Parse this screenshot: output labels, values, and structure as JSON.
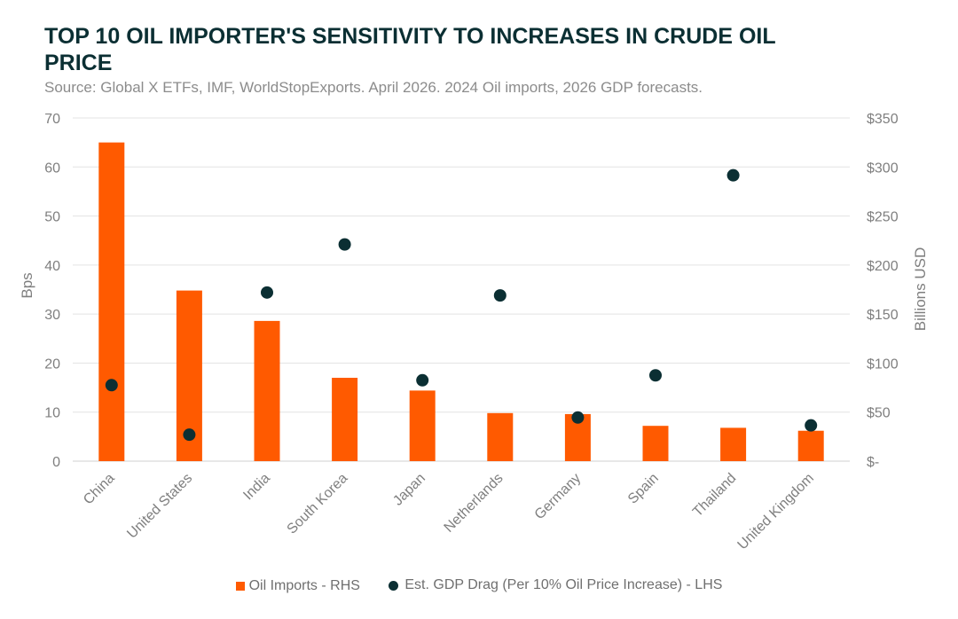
{
  "chart_data": {
    "type": "bar",
    "title": "TOP 10 OIL IMPORTER'S SENSITIVITY TO INCREASES IN CRUDE OIL PRICE",
    "subtitle": "Source: Global X ETFs, IMF, WorldStopExports. April 2026. 2024 Oil imports, 2026 GDP forecasts.",
    "categories": [
      "China",
      "United States",
      "India",
      "South Korea",
      "Japan",
      "Netherlands",
      "Germany",
      "Spain",
      "Thailand",
      "United Kingdom"
    ],
    "series": [
      {
        "name": "Oil Imports - RHS",
        "kind": "bar",
        "axis": "right",
        "color": "#ff5a00",
        "values": [
          325,
          174,
          143,
          85,
          72,
          49,
          48,
          36,
          34,
          31
        ]
      },
      {
        "name": "Est. GDP Drag (Per 10% Oil Price Increase) - LHS",
        "kind": "scatter",
        "axis": "left",
        "color": "#0b2f33",
        "values": [
          15.5,
          5.4,
          34.4,
          44.2,
          16.5,
          33.8,
          8.9,
          17.5,
          58.3,
          7.3
        ]
      }
    ],
    "ylabel": "Bps",
    "ylim": [
      0,
      70
    ],
    "yticks": [
      "0",
      "10",
      "20",
      "30",
      "40",
      "50",
      "60",
      "70"
    ],
    "y2label": "Billions USD",
    "y2lim": [
      0,
      350
    ],
    "y2ticks": [
      "$-",
      "$50",
      "$100",
      "$150",
      "$200",
      "$250",
      "$300",
      "$350"
    ],
    "grid": true,
    "legend_position": "bottom"
  }
}
